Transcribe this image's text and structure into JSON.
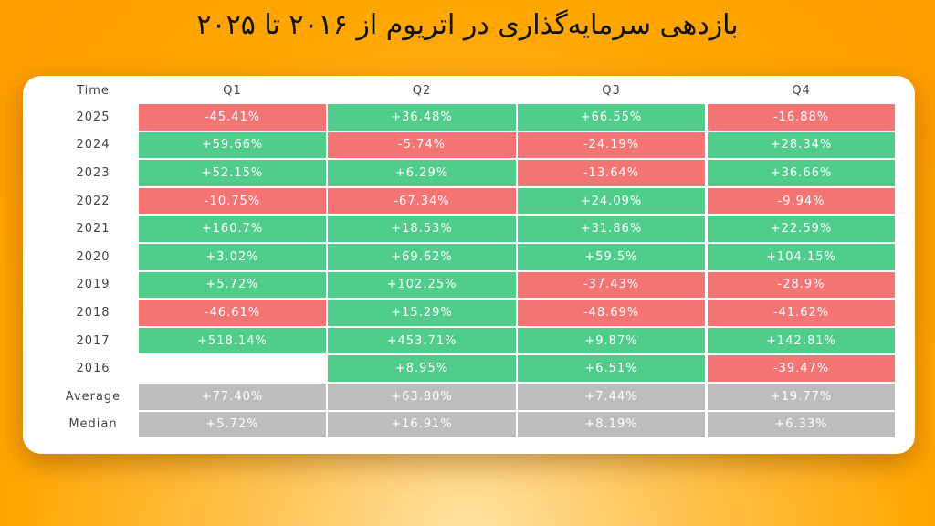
{
  "header": {
    "title": "بازدهی سرمایه‌گذاری در اتریوم از ۲۰۱۶ تا ۲۰۲۵"
  },
  "table": {
    "columns": [
      "Time",
      "Q1",
      "Q2",
      "Q3",
      "Q4"
    ],
    "rows": [
      {
        "label": "2025",
        "cells": [
          "-45.41%",
          "+36.48%",
          "+66.55%",
          "-16.88%"
        ]
      },
      {
        "label": "2024",
        "cells": [
          "+59.66%",
          "-5.74%",
          "-24.19%",
          "+28.34%"
        ]
      },
      {
        "label": "2023",
        "cells": [
          "+52.15%",
          "+6.29%",
          "-13.64%",
          "+36.66%"
        ]
      },
      {
        "label": "2022",
        "cells": [
          "-10.75%",
          "-67.34%",
          "+24.09%",
          "-9.94%"
        ]
      },
      {
        "label": "2021",
        "cells": [
          "+160.7%",
          "+18.53%",
          "+31.86%",
          "+22.59%"
        ]
      },
      {
        "label": "2020",
        "cells": [
          "+3.02%",
          "+69.62%",
          "+59.5%",
          "+104.15%"
        ]
      },
      {
        "label": "2019",
        "cells": [
          "+5.72%",
          "+102.25%",
          "-37.43%",
          "-28.9%"
        ]
      },
      {
        "label": "2018",
        "cells": [
          "-46.61%",
          "+15.29%",
          "-48.69%",
          "-41.62%"
        ]
      },
      {
        "label": "2017",
        "cells": [
          "+518.14%",
          "+453.71%",
          "+9.87%",
          "+142.81%"
        ]
      },
      {
        "label": "2016",
        "cells": [
          null,
          "+8.95%",
          "+6.51%",
          "-39.47%"
        ]
      }
    ],
    "summary": [
      {
        "label": "Average",
        "cells": [
          "+77.40%",
          "+63.80%",
          "+7.44%",
          "+19.77%"
        ]
      },
      {
        "label": "Median",
        "cells": [
          "+5.72%",
          "+16.91%",
          "+8.19%",
          "+6.33%"
        ]
      }
    ]
  }
}
